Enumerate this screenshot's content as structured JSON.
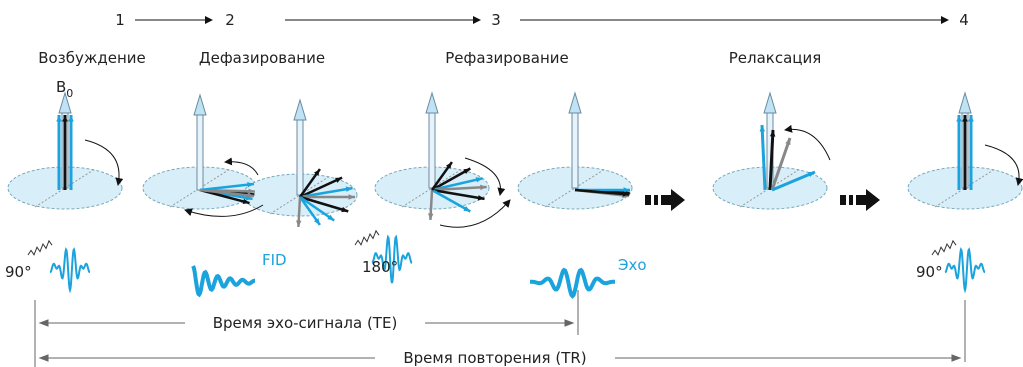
{
  "steps": [
    "1",
    "2",
    "3",
    "4"
  ],
  "phases": [
    "Возбуждение",
    "Дефазирование",
    "Рефазирование",
    "Релаксация"
  ],
  "b0": {
    "symbol": "B",
    "subscript": "0"
  },
  "pulses": {
    "first": "90°",
    "refocus": "180°",
    "last": "90°"
  },
  "signals": {
    "fid": "FID",
    "echo": "Эхо"
  },
  "intervals": {
    "te": "Время эхо-сигнала (TE)",
    "tr": "Время повторения (TR)"
  }
}
